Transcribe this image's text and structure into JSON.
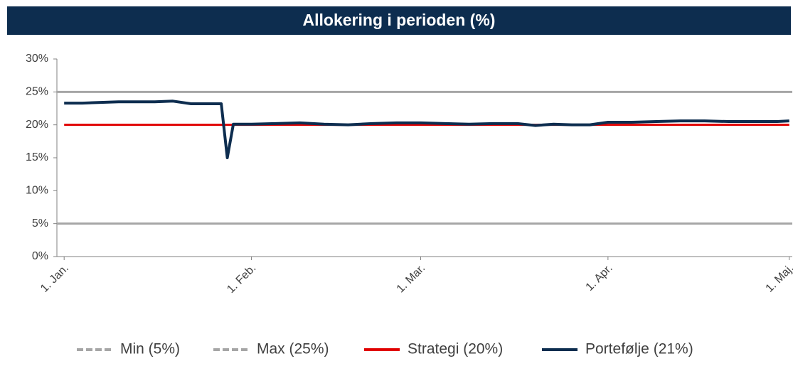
{
  "chart_data": {
    "type": "line",
    "title": "Allokering i perioden (%)",
    "xlim": [
      -1.2,
      120.5
    ],
    "xticks": [
      {
        "value": 0,
        "label": "1. Jan."
      },
      {
        "value": 31,
        "label": "1. Feb."
      },
      {
        "value": 59,
        "label": "1. Mar."
      },
      {
        "value": 90,
        "label": "1. Apr."
      },
      {
        "value": 120,
        "label": "1. Maj."
      }
    ],
    "ylim": [
      0,
      30
    ],
    "yticks": [
      {
        "value": 0,
        "label": "0%"
      },
      {
        "value": 5,
        "label": "5%"
      },
      {
        "value": 10,
        "label": "10%"
      },
      {
        "value": 15,
        "label": "15%"
      },
      {
        "value": 20,
        "label": "20%"
      },
      {
        "value": 25,
        "label": "25%"
      },
      {
        "value": 30,
        "label": "30%"
      }
    ],
    "legend": "bottom",
    "series": [
      {
        "name": "Min (5%)",
        "color": "#a6a6a6",
        "dashed": true,
        "x": [
          -1.2,
          120.5
        ],
        "values": [
          5,
          5
        ]
      },
      {
        "name": "Max (25%)",
        "color": "#a6a6a6",
        "dashed": true,
        "x": [
          -1.2,
          120.5
        ],
        "values": [
          25,
          25
        ]
      },
      {
        "name": "Strategi (20%)",
        "color": "#e00000",
        "x": [
          0,
          120
        ],
        "values": [
          20,
          20
        ]
      },
      {
        "name": "Portefølje (21%)",
        "color": "#0d2d4f",
        "x": [
          0,
          3,
          6,
          9,
          12,
          15,
          18,
          21,
          24,
          26,
          27,
          28,
          31,
          35,
          39,
          43,
          47,
          51,
          55,
          59,
          63,
          67,
          71,
          75,
          78,
          81,
          84,
          87,
          90,
          94,
          98,
          102,
          106,
          110,
          114,
          118,
          120
        ],
        "values": [
          23.3,
          23.3,
          23.4,
          23.5,
          23.5,
          23.5,
          23.6,
          23.2,
          23.2,
          23.2,
          15.0,
          20.1,
          20.1,
          20.2,
          20.3,
          20.1,
          20.0,
          20.2,
          20.3,
          20.3,
          20.2,
          20.1,
          20.2,
          20.2,
          19.9,
          20.1,
          20.0,
          20.0,
          20.4,
          20.4,
          20.5,
          20.6,
          20.6,
          20.5,
          20.5,
          20.5,
          20.6
        ]
      }
    ]
  }
}
